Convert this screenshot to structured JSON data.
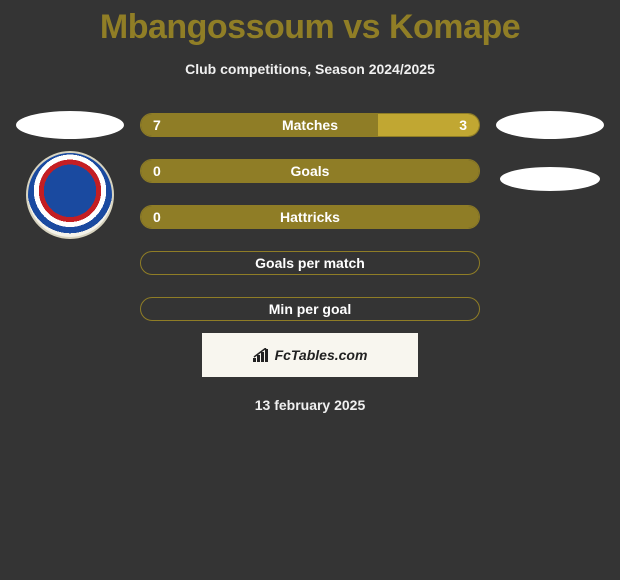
{
  "title": "Mbangossoum vs Komape",
  "title_color": "#907e26",
  "subtitle": "Club competitions, Season 2024/2025",
  "date": "13 february 2025",
  "background_color": "#343434",
  "text_color": "#f0f0f0",
  "watermark": "FcTables.com",
  "watermark_bg": "#f8f6ef",
  "left_badge": {
    "name": "SuperSport United FC",
    "outer_bg": "#f5f3ea",
    "ring_colors": [
      "#1a4aa0",
      "#c41e23",
      "#ffffff"
    ]
  },
  "ellipse_color": "#ffffff",
  "bars": [
    {
      "label": "Matches",
      "left_value": "7",
      "right_value": "3",
      "left_pct": 70,
      "right_pct": 30,
      "fill_color": "#8f7d26",
      "right_fill_color": "#c1a732",
      "border_color": "#8f7d26",
      "track_color": "#343434",
      "show_values": true
    },
    {
      "label": "Goals",
      "left_value": "0",
      "right_value": "",
      "left_pct": 100,
      "right_pct": 0,
      "fill_color": "#8f7d26",
      "right_fill_color": "#c1a732",
      "border_color": "#8f7d26",
      "track_color": "#343434",
      "show_values": true
    },
    {
      "label": "Hattricks",
      "left_value": "0",
      "right_value": "",
      "left_pct": 100,
      "right_pct": 0,
      "fill_color": "#8f7d26",
      "right_fill_color": "#c1a732",
      "border_color": "#8f7d26",
      "track_color": "#343434",
      "show_values": true
    },
    {
      "label": "Goals per match",
      "left_value": "",
      "right_value": "",
      "left_pct": 0,
      "right_pct": 0,
      "fill_color": "#8f7d26",
      "right_fill_color": "#c1a732",
      "border_color": "#8f7d26",
      "track_color": "#343434",
      "show_values": false
    },
    {
      "label": "Min per goal",
      "left_value": "",
      "right_value": "",
      "left_pct": 0,
      "right_pct": 0,
      "fill_color": "#8f7d26",
      "right_fill_color": "#c1a732",
      "border_color": "#8f7d26",
      "track_color": "#343434",
      "show_values": false
    }
  ]
}
